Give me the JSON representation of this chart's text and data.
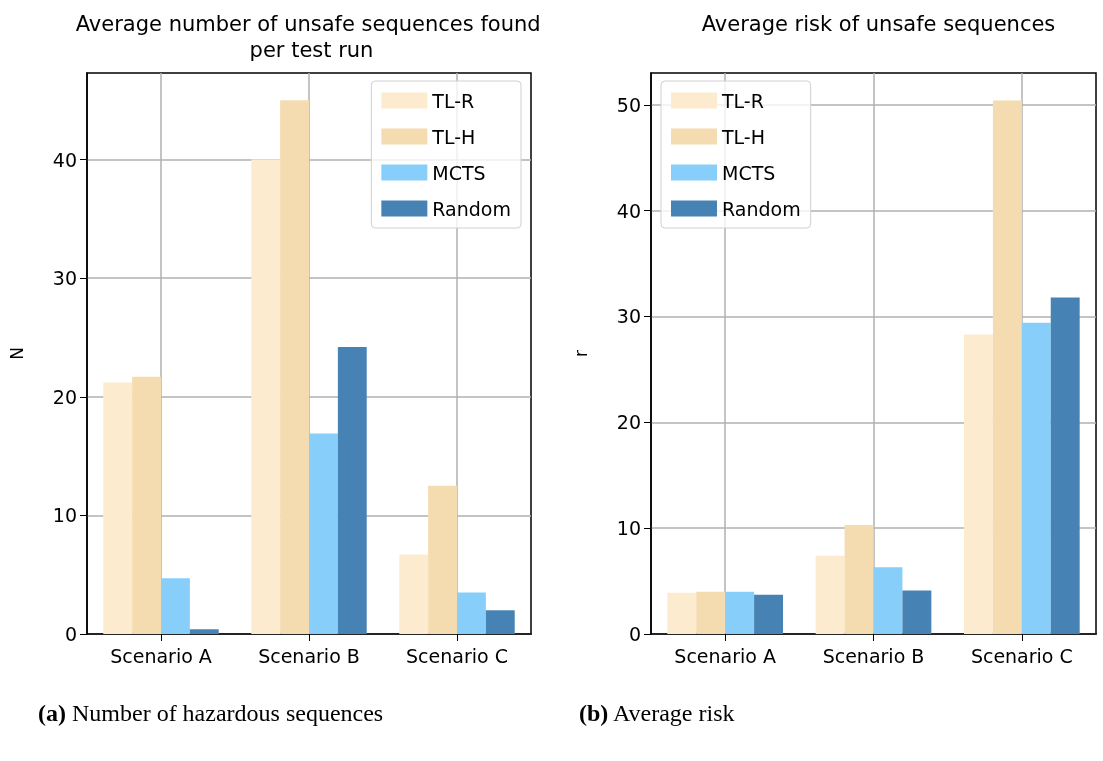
{
  "chart_data": [
    {
      "type": "bar",
      "title": "Average number of unsafe sequences found per test run",
      "ylabel": "N",
      "categories": [
        "Scenario A",
        "Scenario B",
        "Scenario C"
      ],
      "series": [
        {
          "name": "TL-R",
          "color": "#fdebd0",
          "values": [
            21.2,
            40,
            6.7
          ]
        },
        {
          "name": "TL-H",
          "color": "#f5dcb0",
          "values": [
            21.7,
            45,
            12.5
          ]
        },
        {
          "name": "MCTS",
          "color": "#87cefa",
          "values": [
            4.7,
            16.9,
            3.5
          ]
        },
        {
          "name": "Random",
          "color": "#4682b4",
          "values": [
            0.4,
            24.2,
            2.0
          ]
        }
      ],
      "ylim": [
        0,
        47.3
      ],
      "yticks": [
        0,
        10,
        20,
        30,
        40
      ],
      "grid": true,
      "legend": "top right",
      "annotations": [
        "(a) Number of hazardous sequences"
      ]
    },
    {
      "type": "bar",
      "title": "Average risk of unsafe sequences",
      "ylabel": "r",
      "categories": [
        "Scenario A",
        "Scenario B",
        "Scenario C"
      ],
      "series": [
        {
          "name": "TL-R",
          "color": "#fdebd0",
          "values": [
            3.9,
            7.4,
            28.3
          ]
        },
        {
          "name": "TL-H",
          "color": "#f5dcb0",
          "values": [
            4.0,
            10.3,
            50.4
          ]
        },
        {
          "name": "MCTS",
          "color": "#87cefa",
          "values": [
            4.0,
            6.3,
            29.4
          ]
        },
        {
          "name": "Random",
          "color": "#4682b4",
          "values": [
            3.7,
            4.1,
            31.8
          ]
        }
      ],
      "ylim": [
        0,
        53
      ],
      "yticks": [
        0,
        10,
        20,
        30,
        40,
        50
      ],
      "grid": true,
      "legend": "top left",
      "annotations": [
        "(b) Average risk"
      ]
    }
  ]
}
